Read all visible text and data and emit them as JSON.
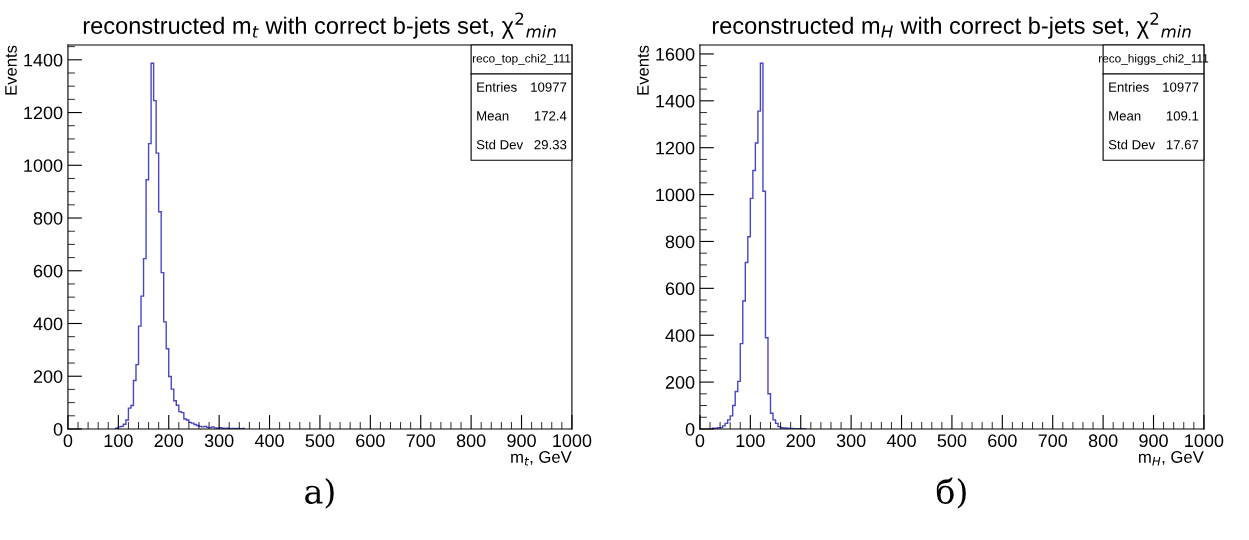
{
  "chart_data": [
    {
      "type": "histogram",
      "title": "reconstructed m$_{t}$ with correct b-jets set, χ$^{2}$$_{min}$",
      "xlabel": "m$_{t}$, GeV",
      "ylabel": "Events",
      "bins": [
        95,
        100,
        105,
        110,
        115,
        120,
        125,
        130,
        135,
        140,
        145,
        150,
        155,
        160,
        165,
        170,
        175,
        180,
        185,
        190,
        195,
        200,
        205,
        210,
        215,
        220,
        225,
        230,
        235,
        240,
        245,
        250,
        255,
        260,
        265,
        270,
        275,
        280,
        285,
        290,
        295,
        300,
        305,
        310,
        315,
        320,
        325,
        330,
        335,
        340,
        345,
        350
      ],
      "values": [
        3,
        8,
        10,
        18,
        34,
        79,
        89,
        184,
        244,
        390,
        504,
        646,
        945,
        1082,
        1387,
        1245,
        1046,
        824,
        593,
        406,
        304,
        199,
        151,
        107,
        90,
        66,
        62,
        38,
        34,
        25,
        22,
        17,
        13,
        10,
        8,
        10,
        6,
        5,
        8,
        4,
        3,
        5,
        3,
        2,
        3,
        1,
        2,
        1,
        2,
        1,
        2
      ],
      "color": "#4646c8",
      "xlim": [
        0,
        1000
      ],
      "ylim": [
        0,
        1456
      ],
      "xticks": [
        0,
        100,
        200,
        300,
        400,
        500,
        600,
        700,
        800,
        900,
        1000
      ],
      "yticks": [
        0,
        200,
        400,
        600,
        800,
        1000,
        1200,
        1400
      ],
      "grid": false,
      "legend": false,
      "annotations": [
        "reco_top_chi2_111",
        "Entries",
        "10977",
        "Mean",
        "172.4",
        "Std Dev",
        "29.33",
        "а)"
      ]
    },
    {
      "type": "histogram",
      "title": "reconstructed m$_{H}$ with correct b-jets set, χ$^{2}$$_{min}$",
      "xlabel": "m$_{H}$, GeV",
      "ylabel": "Events",
      "bins": [
        25,
        30,
        35,
        40,
        45,
        50,
        55,
        60,
        65,
        70,
        75,
        80,
        85,
        90,
        95,
        100,
        105,
        110,
        115,
        120,
        125,
        130,
        135,
        140,
        145,
        150,
        155,
        160,
        165,
        170,
        175,
        180,
        185,
        190,
        195,
        200,
        205,
        210
      ],
      "values": [
        3,
        3,
        6,
        6,
        13,
        24,
        39,
        56,
        100,
        160,
        203,
        364,
        546,
        710,
        820,
        984,
        1103,
        1220,
        1356,
        1560,
        1014,
        389,
        150,
        67,
        39,
        24,
        10,
        5,
        4,
        3,
        2,
        2,
        1,
        1,
        1,
        1,
        1
      ],
      "color": "#4646c8",
      "xlim": [
        0,
        1000
      ],
      "ylim": [
        0,
        1638
      ],
      "xticks": [
        0,
        100,
        200,
        300,
        400,
        500,
        600,
        700,
        800,
        900,
        1000
      ],
      "yticks": [
        0,
        200,
        400,
        600,
        800,
        1000,
        1200,
        1400,
        1600
      ],
      "grid": false,
      "legend": false,
      "annotations": [
        "reco_higgs_chi2_111",
        "Entries",
        "10977",
        "Mean",
        "109.1",
        "Std Dev",
        "17.67",
        "б)"
      ]
    }
  ]
}
